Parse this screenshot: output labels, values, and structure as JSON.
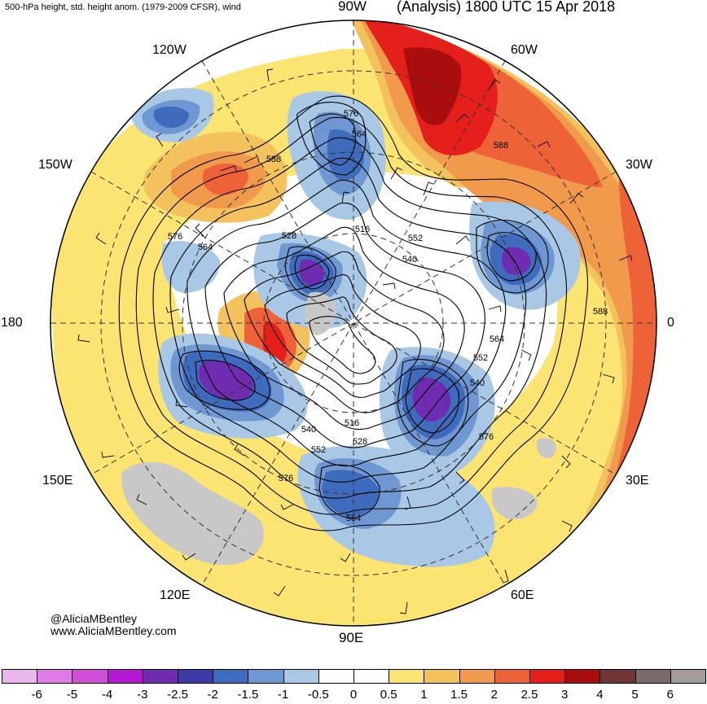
{
  "header": {
    "left_title": "500-hPa height, std. height anom. (1979-2009 CFSR), wind",
    "right_title": "(Analysis) 1800 UTC 15 Apr 2018"
  },
  "longitude_labels": {
    "top": "90W",
    "top_left": "120W",
    "top_right": "60W",
    "upper_left": "150W",
    "upper_right": "30W",
    "left": "180",
    "right": "0",
    "lower_left": "150E",
    "lower_right": "30E",
    "bottom_left": "120E",
    "bottom_right": "60E",
    "bottom": "90E"
  },
  "contour_labels": [
    "576",
    "564",
    "588",
    "576",
    "564",
    "528",
    "516",
    "552",
    "540",
    "588",
    "564",
    "552",
    "540",
    "576",
    "516",
    "528",
    "540",
    "552",
    "576",
    "564"
  ],
  "credit": {
    "handle": "@AliciaMBentley",
    "website": "www.AliciaMBentley.com"
  },
  "colorbar": {
    "labels": [
      "-6",
      "-5",
      "-4",
      "-3",
      "-2.5",
      "-2",
      "-1.5",
      "-1",
      "-0.5",
      "0",
      "0.5",
      "1",
      "1.5",
      "2",
      "2.5",
      "3",
      "4",
      "5",
      "6"
    ],
    "colors": [
      "#e8b8ec",
      "#e07ae4",
      "#d24ed8",
      "#b41ad4",
      "#6f2cb0",
      "#3e3aa6",
      "#3f6bbd",
      "#6f98d2",
      "#a8c8e6",
      "#ffffff",
      "#ffffff",
      "#fbe472",
      "#f4c25c",
      "#f19a4c",
      "#ee6238",
      "#e51f1c",
      "#a90d0d",
      "#6e3636",
      "#7a6b6b",
      "#a69b9b"
    ]
  },
  "map_colors": {
    "land_gray": "#c8c8c8",
    "contour": "#000000",
    "graticule": "#333333"
  }
}
